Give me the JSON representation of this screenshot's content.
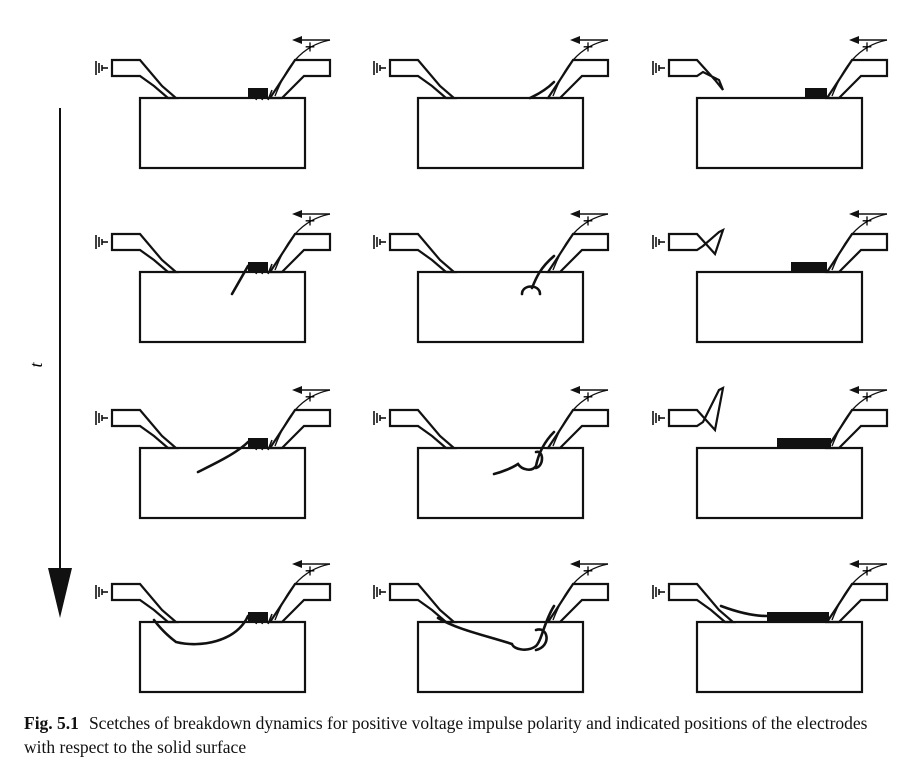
{
  "figure": {
    "time_axis_label": "t",
    "polarity_symbol": "+",
    "caption_label": "Fig. 5.1",
    "caption_text": "Scetches of breakdown dynamics for positive voltage impulse polarity and indicated positions of the electrodes with respect to the solid surface",
    "columns": 3,
    "rows": 4
  }
}
